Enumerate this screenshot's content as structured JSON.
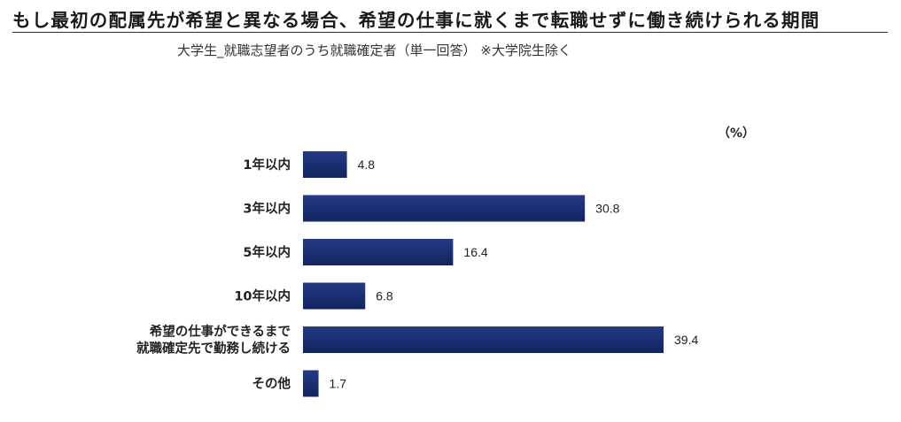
{
  "title": "もし最初の配属先が希望と異なる場合、希望の仕事に就くまで転職せずに働き続けられる期間",
  "subtitle": "大学生_就職志望者のうち就職確定者（単一回答） ※大学院生除く",
  "unit": "（%）",
  "colors": {
    "bar": "#1a2f73"
  },
  "chart_data": {
    "type": "bar",
    "orientation": "horizontal",
    "categories": [
      "1年以内",
      "3年以内",
      "5年以内",
      "10年以内",
      "希望の仕事ができるまで\n就職確定先で勤務し続ける",
      "その他"
    ],
    "values": [
      4.8,
      30.8,
      16.4,
      6.8,
      39.4,
      1.7
    ],
    "title": "もし最初の配属先が希望と異なる場合、希望の仕事に就くまで転職せずに働き続けられる期間",
    "subtitle": "大学生_就職志望者のうち就職確定者（単一回答） ※大学院生除く",
    "unit": "（%）",
    "xlim": [
      0,
      40
    ],
    "grid": false,
    "legend": "none"
  }
}
